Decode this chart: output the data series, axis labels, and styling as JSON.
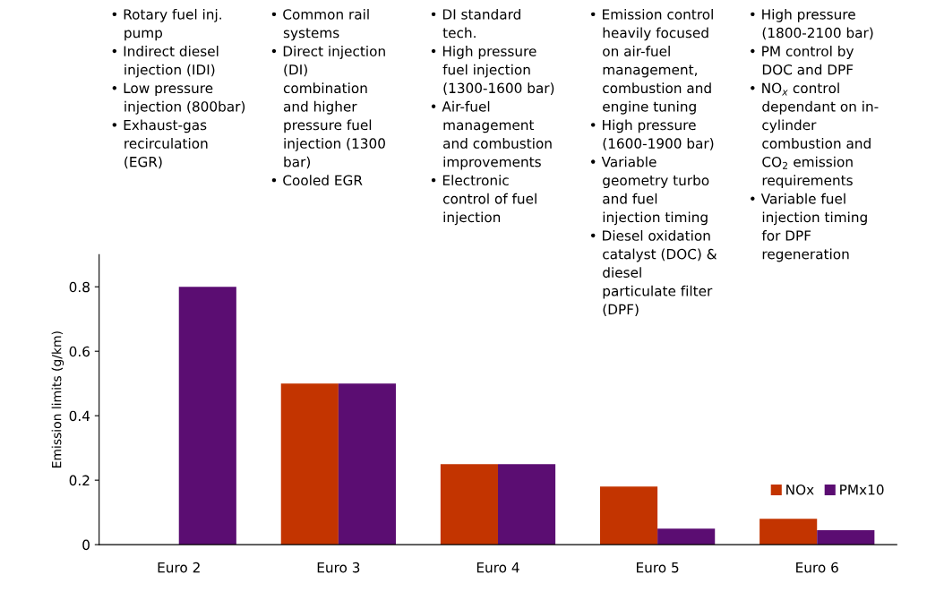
{
  "chart_data": {
    "type": "bar",
    "ylabel": "Emission limits (g/km)",
    "categories": [
      "Euro 2",
      "Euro 3",
      "Euro 4",
      "Euro 5",
      "Euro 6"
    ],
    "series": [
      {
        "name": "NOx",
        "color": "#c33400",
        "values": [
          null,
          0.5,
          0.25,
          0.18,
          0.08
        ]
      },
      {
        "name": "PMx10",
        "color": "#5b0d72",
        "values": [
          0.8,
          0.5,
          0.25,
          0.05,
          0.045
        ]
      }
    ],
    "ylim": [
      0,
      0.9
    ],
    "yticks": [
      0,
      0.2,
      0.4,
      0.6,
      0.8
    ],
    "grid": false,
    "legend": "bottom right",
    "annotations": [
      "• Rotary fuel inj.\n   pump\n• Indirect diesel\n   injection (IDI)\n• Low pressure\n   injection (800bar)\n• Exhaust-gas\n   recirculation\n   (EGR)",
      "• Common rail\n   systems\n• Direct injection\n   (DI)\n   combination\n   and higher\n   pressure fuel\n   injection (1300\n   bar)\n• Cooled EGR",
      "• DI standard\n   tech.\n• High pressure\n   fuel injection\n   (1300-1600 bar)\n• Air-fuel\n   management\n   and combustion\n   improvements\n• Electronic\n   control of fuel\n   injection",
      "• Emission control\n   heavily focused\n   on air-fuel\n   management,\n   combustion and\n   engine tuning\n• High pressure\n   (1600-1900 bar)\n• Variable\n   geometry turbo\n   and fuel\n   injection timing\n• Diesel oxidation\n   catalyst (DOC) &\n   diesel\n   particulate filter\n   (DPF)",
      "• High pressure\n   (1800-2100 bar)\n• PM control by\n   DOC and DPF\n• NO$_{x}$ control\n   dependant on in-\n   cylinder\n   combustion and\n   CO$_{2}$ emission\n   requirements\n• Variable fuel\n   injection timing\n   for DPF\n   regeneration"
    ]
  }
}
